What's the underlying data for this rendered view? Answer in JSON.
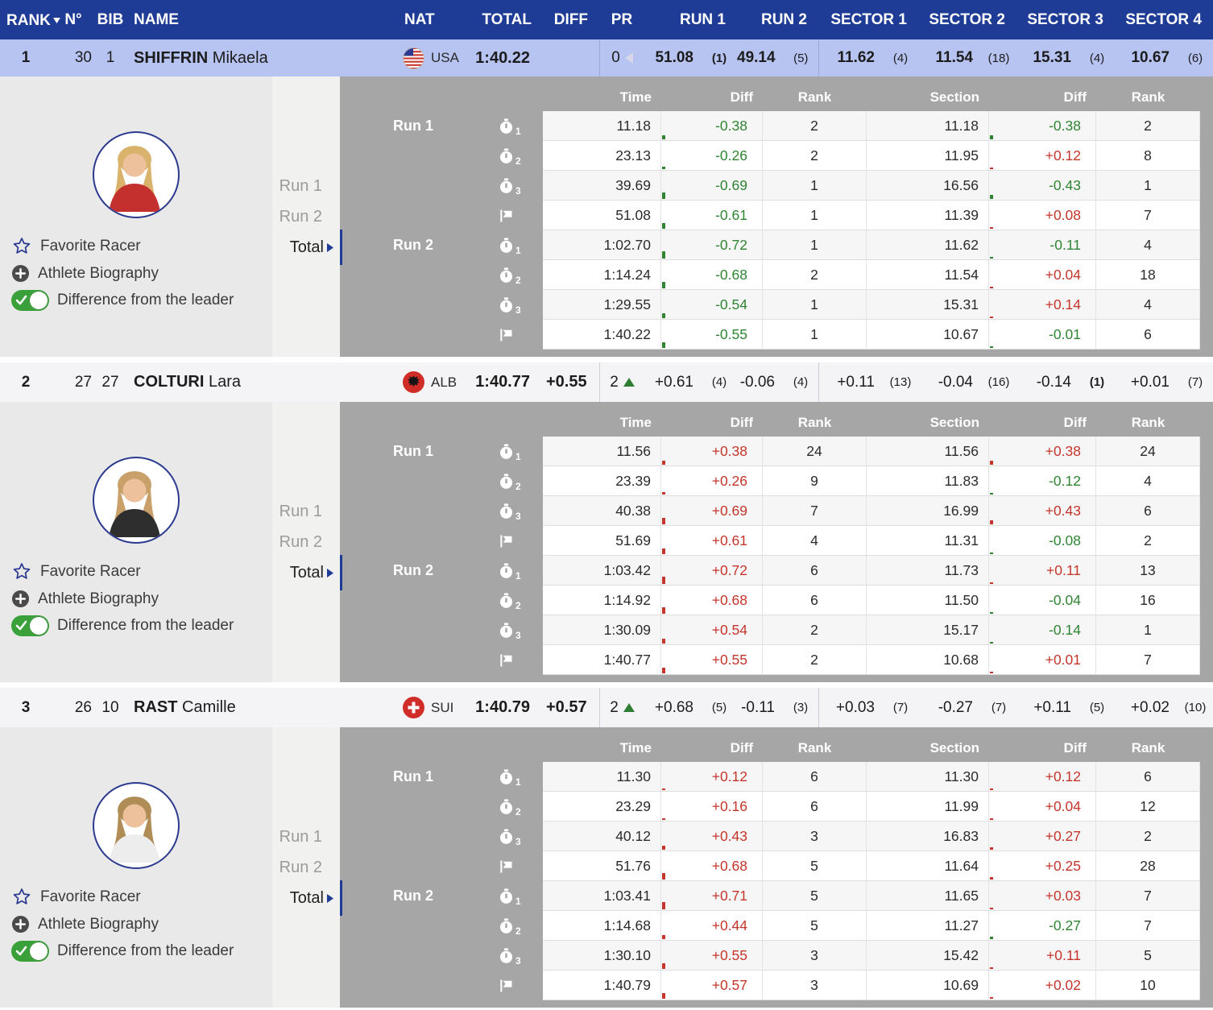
{
  "colors": {
    "navy": "#1e3c96",
    "leader_row": "#b7c3f1",
    "green": "#2f8432",
    "red": "#c4352b",
    "panel_gray": "#a6a6a6"
  },
  "header": {
    "columns": [
      "RANK",
      "N°",
      "BIB",
      "NAME",
      "NAT",
      "TOTAL",
      "DIFF",
      "PR",
      "RUN 1",
      "RUN 2",
      "SECTOR 1",
      "SECTOR 2",
      "SECTOR 3",
      "SECTOR 4"
    ]
  },
  "detail": {
    "columns": [
      "Time",
      "Diff",
      "Rank",
      "Section",
      "Diff",
      "Rank"
    ],
    "run_labels": [
      "Run 1",
      "Run 2"
    ]
  },
  "side": {
    "tabs": [
      "Run 1",
      "Run 2",
      "Total"
    ],
    "favorite": "Favorite Racer",
    "bio": "Athlete Biography",
    "toggle": "Difference from the leader"
  },
  "racers": [
    {
      "rank": "1",
      "n": "30",
      "bib": "1",
      "last": "SHIFFRIN",
      "first": "Mikaela",
      "nat": "USA",
      "flag": "usa",
      "total": "1:40.22",
      "diff": "",
      "pr": {
        "value": "0",
        "dir": "left"
      },
      "run1": {
        "v": "51.08",
        "r": "(1)"
      },
      "run2": {
        "v": "49.14",
        "r": "(5)"
      },
      "sectors": [
        {
          "v": "11.62",
          "r": "(4)"
        },
        {
          "v": "11.54",
          "r": "(18)"
        },
        {
          "v": "15.31",
          "r": "(4)"
        },
        {
          "v": "10.67",
          "r": "(6)"
        }
      ],
      "avatar": {
        "hair": "#d9b36c",
        "jacket": "#c4302e"
      },
      "rows": [
        {
          "run": "Run 1",
          "icon": "timer1",
          "time": "11.18",
          "diff": "-0.38",
          "rank": "2",
          "section": "11.18",
          "sdiff": "-0.38",
          "srank": "2"
        },
        {
          "icon": "timer2",
          "time": "23.13",
          "diff": "-0.26",
          "rank": "2",
          "section": "11.95",
          "sdiff": "+0.12",
          "srank": "8"
        },
        {
          "icon": "timer3",
          "time": "39.69",
          "diff": "-0.69",
          "rank": "1",
          "section": "16.56",
          "sdiff": "-0.43",
          "srank": "1"
        },
        {
          "icon": "flag",
          "time": "51.08",
          "diff": "-0.61",
          "rank": "1",
          "section": "11.39",
          "sdiff": "+0.08",
          "srank": "7"
        },
        {
          "run": "Run 2",
          "icon": "timer1",
          "time": "1:02.70",
          "diff": "-0.72",
          "rank": "1",
          "section": "11.62",
          "sdiff": "-0.11",
          "srank": "4"
        },
        {
          "icon": "timer2",
          "time": "1:14.24",
          "diff": "-0.68",
          "rank": "2",
          "section": "11.54",
          "sdiff": "+0.04",
          "srank": "18"
        },
        {
          "icon": "timer3",
          "time": "1:29.55",
          "diff": "-0.54",
          "rank": "1",
          "section": "15.31",
          "sdiff": "+0.14",
          "srank": "4"
        },
        {
          "icon": "flag",
          "time": "1:40.22",
          "diff": "-0.55",
          "rank": "1",
          "section": "10.67",
          "sdiff": "-0.01",
          "srank": "6"
        }
      ]
    },
    {
      "rank": "2",
      "n": "27",
      "bib": "27",
      "last": "COLTURI",
      "first": "Lara",
      "nat": "ALB",
      "flag": "alb",
      "total": "1:40.77",
      "diff": "+0.55",
      "pr": {
        "value": "2",
        "dir": "up"
      },
      "run1": {
        "v": "+0.61",
        "r": "(4)"
      },
      "run2": {
        "v": "-0.06",
        "r": "(4)"
      },
      "sectors": [
        {
          "v": "+0.11",
          "r": "(13)"
        },
        {
          "v": "-0.04",
          "r": "(16)"
        },
        {
          "v": "-0.14",
          "r": "(1)"
        },
        {
          "v": "+0.01",
          "r": "(7)"
        }
      ],
      "avatar": {
        "hair": "#c9a06a",
        "jacket": "#2e2e2e"
      },
      "rows": [
        {
          "run": "Run 1",
          "icon": "timer1",
          "time": "11.56",
          "diff": "+0.38",
          "rank": "24",
          "section": "11.56",
          "sdiff": "+0.38",
          "srank": "24"
        },
        {
          "icon": "timer2",
          "time": "23.39",
          "diff": "+0.26",
          "rank": "9",
          "section": "11.83",
          "sdiff": "-0.12",
          "srank": "4"
        },
        {
          "icon": "timer3",
          "time": "40.38",
          "diff": "+0.69",
          "rank": "7",
          "section": "16.99",
          "sdiff": "+0.43",
          "srank": "6"
        },
        {
          "icon": "flag",
          "time": "51.69",
          "diff": "+0.61",
          "rank": "4",
          "section": "11.31",
          "sdiff": "-0.08",
          "srank": "2"
        },
        {
          "run": "Run 2",
          "icon": "timer1",
          "time": "1:03.42",
          "diff": "+0.72",
          "rank": "6",
          "section": "11.73",
          "sdiff": "+0.11",
          "srank": "13"
        },
        {
          "icon": "timer2",
          "time": "1:14.92",
          "diff": "+0.68",
          "rank": "6",
          "section": "11.50",
          "sdiff": "-0.04",
          "srank": "16"
        },
        {
          "icon": "timer3",
          "time": "1:30.09",
          "diff": "+0.54",
          "rank": "2",
          "section": "15.17",
          "sdiff": "-0.14",
          "srank": "1"
        },
        {
          "icon": "flag",
          "time": "1:40.77",
          "diff": "+0.55",
          "rank": "2",
          "section": "10.68",
          "sdiff": "+0.01",
          "srank": "7"
        }
      ]
    },
    {
      "rank": "3",
      "n": "26",
      "bib": "10",
      "last": "RAST",
      "first": "Camille",
      "nat": "SUI",
      "flag": "sui",
      "total": "1:40.79",
      "diff": "+0.57",
      "pr": {
        "value": "2",
        "dir": "up"
      },
      "run1": {
        "v": "+0.68",
        "r": "(5)"
      },
      "run2": {
        "v": "-0.11",
        "r": "(3)"
      },
      "sectors": [
        {
          "v": "+0.03",
          "r": "(7)"
        },
        {
          "v": "-0.27",
          "r": "(7)"
        },
        {
          "v": "+0.11",
          "r": "(5)"
        },
        {
          "v": "+0.02",
          "r": "(10)"
        }
      ],
      "avatar": {
        "hair": "#b08d57",
        "jacket": "#ededed"
      },
      "rows": [
        {
          "run": "Run 1",
          "icon": "timer1",
          "time": "11.30",
          "diff": "+0.12",
          "rank": "6",
          "section": "11.30",
          "sdiff": "+0.12",
          "srank": "6"
        },
        {
          "icon": "timer2",
          "time": "23.29",
          "diff": "+0.16",
          "rank": "6",
          "section": "11.99",
          "sdiff": "+0.04",
          "srank": "12"
        },
        {
          "icon": "timer3",
          "time": "40.12",
          "diff": "+0.43",
          "rank": "3",
          "section": "16.83",
          "sdiff": "+0.27",
          "srank": "2"
        },
        {
          "icon": "flag",
          "time": "51.76",
          "diff": "+0.68",
          "rank": "5",
          "section": "11.64",
          "sdiff": "+0.25",
          "srank": "28"
        },
        {
          "run": "Run 2",
          "icon": "timer1",
          "time": "1:03.41",
          "diff": "+0.71",
          "rank": "5",
          "section": "11.65",
          "sdiff": "+0.03",
          "srank": "7"
        },
        {
          "icon": "timer2",
          "time": "1:14.68",
          "diff": "+0.44",
          "rank": "5",
          "section": "11.27",
          "sdiff": "-0.27",
          "srank": "7"
        },
        {
          "icon": "timer3",
          "time": "1:30.10",
          "diff": "+0.55",
          "rank": "3",
          "section": "15.42",
          "sdiff": "+0.11",
          "srank": "5"
        },
        {
          "icon": "flag",
          "time": "1:40.79",
          "diff": "+0.57",
          "rank": "3",
          "section": "10.69",
          "sdiff": "+0.02",
          "srank": "10"
        }
      ]
    }
  ]
}
